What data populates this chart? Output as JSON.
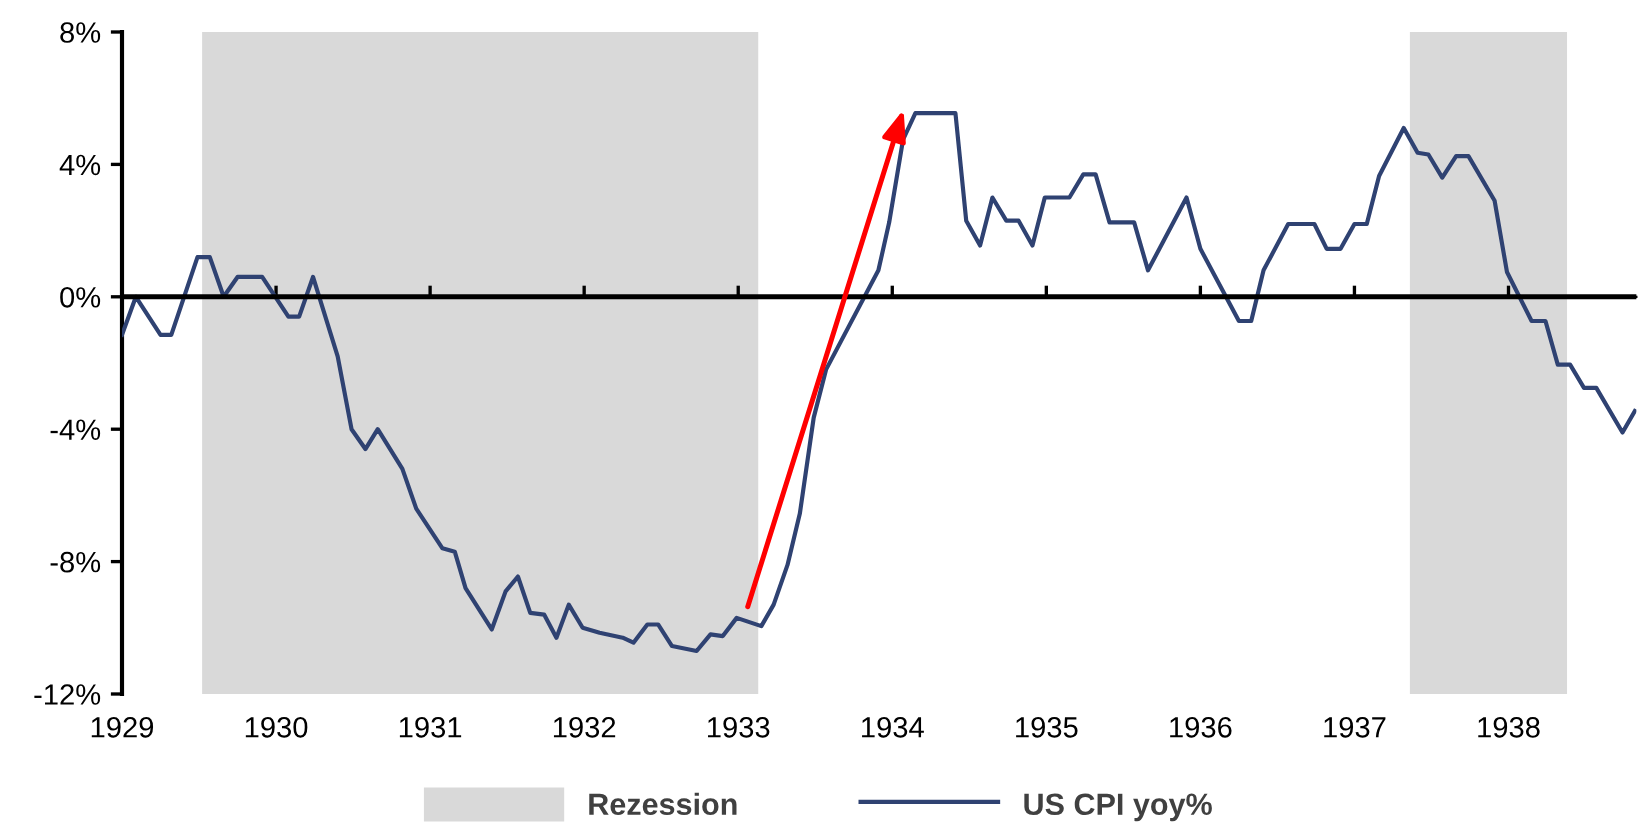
{
  "chart_data": {
    "type": "line",
    "series": [
      {
        "name": "US CPI yoy%",
        "color": "#2f4272",
        "x": [
          1929.0,
          1929.09,
          1929.25,
          1929.32,
          1929.49,
          1929.57,
          1929.66,
          1929.75,
          1929.91,
          1930.08,
          1930.15,
          1930.24,
          1930.4,
          1930.49,
          1930.58,
          1930.66,
          1930.82,
          1930.91,
          1931.08,
          1931.16,
          1931.23,
          1931.4,
          1931.49,
          1931.57,
          1931.65,
          1931.74,
          1931.82,
          1931.9,
          1931.99,
          1932.1,
          1932.25,
          1932.32,
          1932.41,
          1932.48,
          1932.57,
          1932.73,
          1932.82,
          1932.9,
          1932.99,
          1933.15,
          1933.23,
          1933.32,
          1933.4,
          1933.49,
          1933.57,
          1933.91,
          1933.98,
          1934.07,
          1934.15,
          1934.41,
          1934.48,
          1934.57,
          1934.65,
          1934.74,
          1934.82,
          1934.91,
          1934.99,
          1935.15,
          1935.24,
          1935.32,
          1935.41,
          1935.57,
          1935.66,
          1935.91,
          1936.0,
          1936.25,
          1936.33,
          1936.41,
          1936.57,
          1936.74,
          1936.82,
          1936.91,
          1937.0,
          1937.08,
          1937.16,
          1937.32,
          1937.41,
          1937.48,
          1937.57,
          1937.66,
          1937.74,
          1937.91,
          1937.99,
          1938.15,
          1938.24,
          1938.32,
          1938.4,
          1938.49,
          1938.57,
          1938.74,
          1938.82
        ],
        "values": [
          -1.15,
          0,
          -1.15,
          -1.15,
          1.2,
          1.2,
          0,
          0.6,
          0.6,
          -0.6,
          -0.6,
          0.6,
          -1.8,
          -4.0,
          -4.6,
          -4.0,
          -5.2,
          -6.4,
          -7.6,
          -7.7,
          -8.8,
          -10.05,
          -8.9,
          -8.45,
          -9.55,
          -9.6,
          -10.3,
          -9.3,
          -10.0,
          -10.15,
          -10.3,
          -10.45,
          -9.9,
          -9.9,
          -10.55,
          -10.7,
          -10.2,
          -10.25,
          -9.7,
          -9.95,
          -9.3,
          -8.1,
          -6.55,
          -3.65,
          -2.2,
          0.8,
          2.25,
          4.75,
          5.55,
          5.55,
          2.3,
          1.55,
          3.0,
          2.3,
          2.3,
          1.55,
          3.0,
          3.0,
          3.7,
          3.7,
          2.25,
          2.25,
          0.8,
          3.0,
          1.45,
          -0.73,
          -0.73,
          0.8,
          2.2,
          2.2,
          1.45,
          1.45,
          2.2,
          2.2,
          3.65,
          5.1,
          4.35,
          4.3,
          3.6,
          4.25,
          4.25,
          2.9,
          0.75,
          -0.73,
          -0.73,
          -2.05,
          -2.05,
          -2.75,
          -2.75,
          -4.1,
          -3.45
        ]
      }
    ],
    "xlim": [
      1929,
      1938.83
    ],
    "xticks": [
      1929,
      1930,
      1931,
      1932,
      1933,
      1934,
      1935,
      1936,
      1937,
      1938
    ],
    "ylim": [
      -12,
      8
    ],
    "yticks": [
      {
        "value": -12,
        "label": "-12%"
      },
      {
        "value": -8,
        "label": "-8%"
      },
      {
        "value": -4,
        "label": "-4%"
      },
      {
        "value": 0,
        "label": "0%"
      },
      {
        "value": 4,
        "label": "4%"
      },
      {
        "value": 8,
        "label": "8%"
      }
    ],
    "bands": [
      {
        "axis": "x",
        "from": 1929.52,
        "to": 1933.13,
        "label": "Rezession",
        "color": "#d9d9d9"
      },
      {
        "axis": "x",
        "from": 1937.36,
        "to": 1938.38,
        "color": "#d9d9d9"
      }
    ],
    "ref_lines": [
      {
        "axis": "y",
        "value": 0,
        "color": "#000000",
        "line_style": "solid"
      }
    ],
    "legend": "bottom",
    "grid": false,
    "marker": "none",
    "line_style": "solid"
  }
}
